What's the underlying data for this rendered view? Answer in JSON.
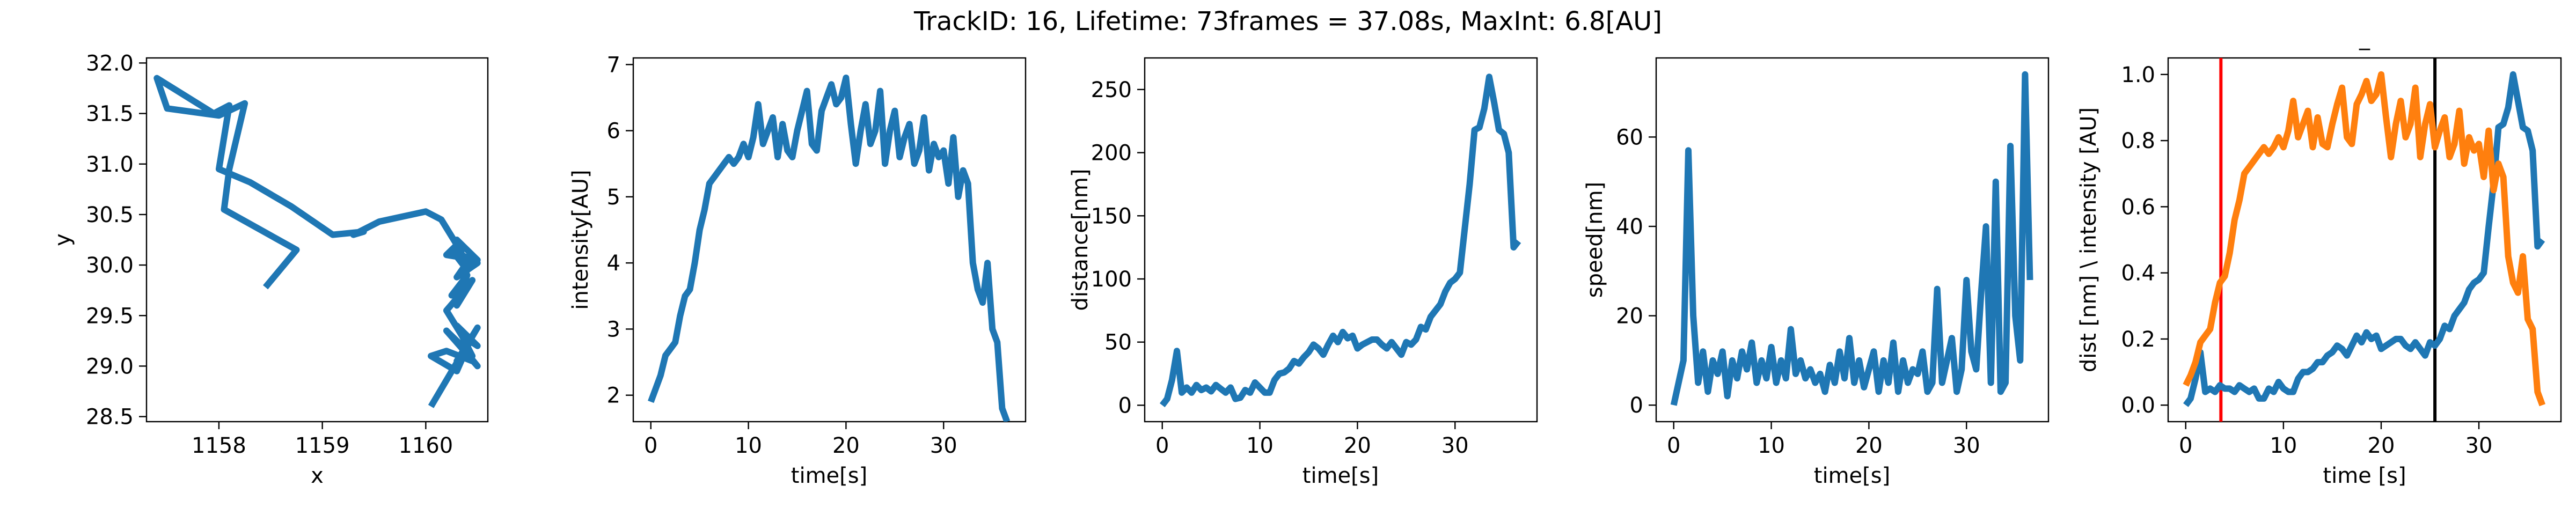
{
  "figure": {
    "title": "TrackID: 16, Lifetime: 73frames = 37.08s, MaxInt: 6.8[AU]"
  },
  "chart_data": [
    {
      "type": "line",
      "id": "trajectory",
      "xlabel": "x",
      "ylabel": "y",
      "xlim": [
        1157.3,
        1160.6
      ],
      "ylim": [
        28.45,
        32.05
      ],
      "xticks": [
        1158,
        1159,
        1160
      ],
      "yticks": [
        28.5,
        29.0,
        29.5,
        30.0,
        30.5,
        31.0,
        31.5,
        32.0
      ],
      "ytick_format": 1,
      "series": [
        {
          "color": "#1f77b4",
          "x": [
            1158.45,
            1158.75,
            1158.05,
            1158.1,
            1158.25,
            1158.0,
            1157.5,
            1157.4,
            1157.95,
            1158.1,
            1158.0,
            1158.3,
            1158.7,
            1159.1,
            1159.4,
            1159.3,
            1159.55,
            1160.0,
            1160.15,
            1160.3,
            1160.2,
            1160.5,
            1160.3,
            1160.4,
            1160.25,
            1160.5,
            1160.3,
            1160.45,
            1160.35,
            1160.25,
            1160.4,
            1160.3,
            1160.45,
            1160.2,
            1160.35,
            1160.5,
            1160.3,
            1160.45,
            1160.2,
            1160.5,
            1160.3,
            1160.45,
            1160.2,
            1160.05,
            1160.3,
            1160.45,
            1160.3,
            1160.5,
            1160.05
          ],
          "y": [
            29.78,
            30.15,
            30.55,
            30.95,
            31.6,
            31.48,
            31.55,
            31.85,
            31.5,
            31.58,
            30.95,
            30.82,
            30.58,
            30.3,
            30.33,
            30.3,
            30.43,
            30.53,
            30.45,
            30.2,
            30.1,
            30.05,
            30.25,
            29.95,
            30.15,
            30.02,
            29.88,
            30.1,
            29.8,
            29.7,
            29.9,
            29.6,
            29.85,
            29.55,
            29.3,
            29.2,
            29.4,
            29.1,
            29.35,
            29.0,
            29.25,
            29.05,
            29.15,
            29.1,
            28.95,
            29.3,
            29.05,
            29.38,
            28.6
          ]
        }
      ]
    },
    {
      "type": "line",
      "id": "intensity",
      "xlabel": "time[s]",
      "ylabel": "intensity[AU]",
      "xlim": [
        -1.8,
        38.4
      ],
      "ylim": [
        1.6,
        7.1
      ],
      "xticks": [
        0,
        10,
        20,
        30
      ],
      "yticks": [
        2,
        3,
        4,
        5,
        6,
        7
      ],
      "ytick_format": 0,
      "series": [
        {
          "color": "#1f77b4",
          "x": [
            0,
            0.5,
            1,
            1.5,
            2,
            2.5,
            3,
            3.5,
            4,
            4.5,
            5,
            5.5,
            6,
            6.5,
            7,
            7.5,
            8,
            8.5,
            9,
            9.5,
            10,
            10.5,
            11,
            11.5,
            12,
            12.5,
            13,
            13.5,
            14,
            14.5,
            15,
            15.5,
            16,
            16.5,
            17,
            17.5,
            18,
            18.5,
            19,
            19.5,
            20,
            20.5,
            21,
            21.5,
            22,
            22.5,
            23,
            23.5,
            24,
            24.5,
            25,
            25.5,
            26,
            26.5,
            27,
            27.5,
            28,
            28.5,
            29,
            29.5,
            30,
            30.5,
            31,
            31.5,
            32,
            32.5,
            33,
            33.5,
            34,
            34.5,
            35,
            35.5,
            36,
            36.5
          ],
          "y": [
            1.9,
            2.1,
            2.3,
            2.6,
            2.7,
            2.8,
            3.2,
            3.5,
            3.6,
            4.0,
            4.5,
            4.8,
            5.2,
            5.3,
            5.4,
            5.5,
            5.6,
            5.5,
            5.6,
            5.8,
            5.6,
            5.9,
            6.4,
            5.8,
            6.0,
            6.2,
            5.6,
            6.1,
            5.7,
            5.6,
            6.0,
            6.3,
            6.6,
            5.8,
            5.7,
            6.3,
            6.5,
            6.7,
            6.4,
            6.5,
            6.8,
            6.1,
            5.5,
            6.0,
            6.4,
            5.8,
            6.0,
            6.6,
            5.5,
            6.0,
            6.3,
            5.6,
            5.9,
            6.1,
            5.5,
            5.7,
            6.2,
            5.4,
            5.8,
            5.6,
            5.7,
            5.2,
            5.9,
            5.0,
            5.4,
            5.2,
            4.0,
            3.6,
            3.4,
            4.0,
            3.0,
            2.8,
            1.8,
            1.6
          ]
        }
      ]
    },
    {
      "type": "line",
      "id": "distance",
      "xlabel": "time[s]",
      "ylabel": "distance[nm]",
      "xlim": [
        -1.8,
        38.4
      ],
      "ylim": [
        -13,
        275
      ],
      "xticks": [
        0,
        10,
        20,
        30
      ],
      "yticks": [
        0,
        50,
        100,
        150,
        200,
        250
      ],
      "ytick_format": 0,
      "series": [
        {
          "color": "#1f77b4",
          "x": [
            0,
            0.5,
            1,
            1.5,
            2,
            2.5,
            3,
            3.5,
            4,
            4.5,
            5,
            5.5,
            6,
            6.5,
            7,
            7.5,
            8,
            8.5,
            9,
            9.5,
            10,
            10.5,
            11,
            11.5,
            12,
            12.5,
            13,
            13.5,
            14,
            14.5,
            15,
            15.5,
            16,
            16.5,
            17,
            17.5,
            18,
            18.5,
            19,
            19.5,
            20,
            20.5,
            21,
            21.5,
            22,
            22.5,
            23,
            23.5,
            24,
            24.5,
            25,
            25.5,
            26,
            26.5,
            27,
            27.5,
            28,
            28.5,
            29,
            29.5,
            30,
            30.5,
            31,
            31.5,
            32,
            32.5,
            33,
            33.5,
            34,
            34.5,
            35,
            35.5,
            36,
            36.5
          ],
          "y": [
            0,
            5,
            20,
            43,
            10,
            14,
            10,
            16,
            12,
            14,
            11,
            16,
            13,
            10,
            14,
            5,
            6,
            12,
            10,
            18,
            14,
            10,
            10,
            20,
            25,
            26,
            29,
            35,
            33,
            38,
            42,
            48,
            45,
            40,
            48,
            55,
            50,
            58,
            53,
            55,
            45,
            48,
            50,
            52,
            52,
            48,
            45,
            50,
            45,
            40,
            50,
            48,
            52,
            62,
            60,
            70,
            75,
            80,
            90,
            97,
            100,
            105,
            140,
            175,
            218,
            220,
            235,
            260,
            240,
            218,
            215,
            200,
            125,
            130
          ]
        }
      ]
    },
    {
      "type": "line",
      "id": "speed",
      "xlabel": "time[s]",
      "ylabel": "speed[nm]",
      "xlim": [
        -1.8,
        38.4
      ],
      "ylim": [
        -3.7,
        77.7
      ],
      "xticks": [
        0,
        10,
        20,
        30
      ],
      "yticks": [
        0,
        20,
        40,
        60
      ],
      "ytick_format": 0,
      "series": [
        {
          "color": "#1f77b4",
          "x": [
            0,
            0.5,
            1,
            1.5,
            2,
            2.5,
            3,
            3.5,
            4,
            4.5,
            5,
            5.5,
            6,
            6.5,
            7,
            7.5,
            8,
            8.5,
            9,
            9.5,
            10,
            10.5,
            11,
            11.5,
            12,
            12.5,
            13,
            13.5,
            14,
            14.5,
            15,
            15.5,
            16,
            16.5,
            17,
            17.5,
            18,
            18.5,
            19,
            19.5,
            20,
            20.5,
            21,
            21.5,
            22,
            22.5,
            23,
            23.5,
            24,
            24.5,
            25,
            25.5,
            26,
            26.5,
            27,
            27.5,
            28,
            28.5,
            29,
            29.5,
            30,
            30.5,
            31,
            31.5,
            32,
            32.5,
            33,
            33.5,
            34,
            34.5,
            35,
            35.5,
            36,
            36.5
          ],
          "y": [
            0,
            5,
            10,
            57,
            20,
            5,
            12,
            3,
            10,
            7,
            12,
            2,
            10,
            6,
            12,
            8,
            14,
            5,
            10,
            6,
            13,
            5,
            10,
            6,
            17,
            7,
            10,
            6,
            8,
            5,
            7,
            3,
            9,
            5,
            12,
            6,
            15,
            5,
            10,
            4,
            8,
            12,
            3,
            10,
            5,
            14,
            3,
            10,
            5,
            8,
            7,
            12,
            3,
            5,
            26,
            5,
            10,
            15,
            3,
            8,
            28,
            12,
            8,
            25,
            40,
            5,
            50,
            3,
            5,
            58,
            20,
            10,
            74,
            28
          ]
        }
      ]
    },
    {
      "type": "line",
      "id": "normalized",
      "title": "_",
      "xlabel": "time [s]",
      "ylabel": "dist [nm] \\ intensity [AU]",
      "xlim": [
        -1.8,
        38.4
      ],
      "ylim": [
        -0.05,
        1.05
      ],
      "xticks": [
        0,
        10,
        20,
        30
      ],
      "yticks": [
        0.0,
        0.2,
        0.4,
        0.6,
        0.8,
        1.0
      ],
      "ytick_format": 1,
      "vlines": [
        {
          "x": 3.6,
          "color": "#ff0000"
        },
        {
          "x": 25.5,
          "color": "#000000"
        }
      ],
      "series": [
        {
          "color": "#1f77b4",
          "x": [
            0,
            0.5,
            1,
            1.5,
            2,
            2.5,
            3,
            3.5,
            4,
            4.5,
            5,
            5.5,
            6,
            6.5,
            7,
            7.5,
            8,
            8.5,
            9,
            9.5,
            10,
            10.5,
            11,
            11.5,
            12,
            12.5,
            13,
            13.5,
            14,
            14.5,
            15,
            15.5,
            16,
            16.5,
            17,
            17.5,
            18,
            18.5,
            19,
            19.5,
            20,
            20.5,
            21,
            21.5,
            22,
            22.5,
            23,
            23.5,
            24,
            24.5,
            25,
            25.5,
            26,
            26.5,
            27,
            27.5,
            28,
            28.5,
            29,
            29.5,
            30,
            30.5,
            31,
            31.5,
            32,
            32.5,
            33,
            33.5,
            34,
            34.5,
            35,
            35.5,
            36,
            36.5
          ],
          "y": [
            0.0,
            0.02,
            0.08,
            0.16,
            0.04,
            0.05,
            0.04,
            0.06,
            0.05,
            0.05,
            0.04,
            0.06,
            0.05,
            0.04,
            0.05,
            0.02,
            0.02,
            0.05,
            0.04,
            0.07,
            0.05,
            0.04,
            0.04,
            0.08,
            0.1,
            0.1,
            0.11,
            0.13,
            0.13,
            0.15,
            0.16,
            0.18,
            0.17,
            0.15,
            0.18,
            0.21,
            0.19,
            0.22,
            0.2,
            0.21,
            0.17,
            0.18,
            0.19,
            0.2,
            0.2,
            0.18,
            0.17,
            0.19,
            0.17,
            0.15,
            0.19,
            0.18,
            0.2,
            0.24,
            0.23,
            0.27,
            0.29,
            0.31,
            0.35,
            0.37,
            0.38,
            0.4,
            0.54,
            0.67,
            0.84,
            0.85,
            0.9,
            1.0,
            0.92,
            0.84,
            0.83,
            0.77,
            0.48,
            0.5
          ]
        },
        {
          "color": "#ff7f0e",
          "x": [
            0,
            0.5,
            1,
            1.5,
            2,
            2.5,
            3,
            3.5,
            4,
            4.5,
            5,
            5.5,
            6,
            6.5,
            7,
            7.5,
            8,
            8.5,
            9,
            9.5,
            10,
            10.5,
            11,
            11.5,
            12,
            12.5,
            13,
            13.5,
            14,
            14.5,
            15,
            15.5,
            16,
            16.5,
            17,
            17.5,
            18,
            18.5,
            19,
            19.5,
            20,
            20.5,
            21,
            21.5,
            22,
            22.5,
            23,
            23.5,
            24,
            24.5,
            25,
            25.5,
            26,
            26.5,
            27,
            27.5,
            28,
            28.5,
            29,
            29.5,
            30,
            30.5,
            31,
            31.5,
            32,
            32.5,
            33,
            33.5,
            34,
            34.5,
            35,
            35.5,
            36,
            36.5
          ],
          "y": [
            0.06,
            0.09,
            0.13,
            0.19,
            0.21,
            0.23,
            0.31,
            0.37,
            0.39,
            0.46,
            0.56,
            0.62,
            0.7,
            0.72,
            0.74,
            0.76,
            0.78,
            0.76,
            0.78,
            0.81,
            0.78,
            0.83,
            0.92,
            0.81,
            0.85,
            0.89,
            0.78,
            0.87,
            0.79,
            0.78,
            0.85,
            0.91,
            0.96,
            0.81,
            0.79,
            0.91,
            0.94,
            0.98,
            0.92,
            0.94,
            1.0,
            0.87,
            0.75,
            0.85,
            0.92,
            0.81,
            0.85,
            0.96,
            0.75,
            0.85,
            0.91,
            0.78,
            0.83,
            0.87,
            0.75,
            0.79,
            0.89,
            0.73,
            0.81,
            0.77,
            0.79,
            0.69,
            0.83,
            0.65,
            0.73,
            0.69,
            0.45,
            0.37,
            0.34,
            0.45,
            0.26,
            0.23,
            0.04,
            0.0
          ]
        }
      ]
    }
  ]
}
